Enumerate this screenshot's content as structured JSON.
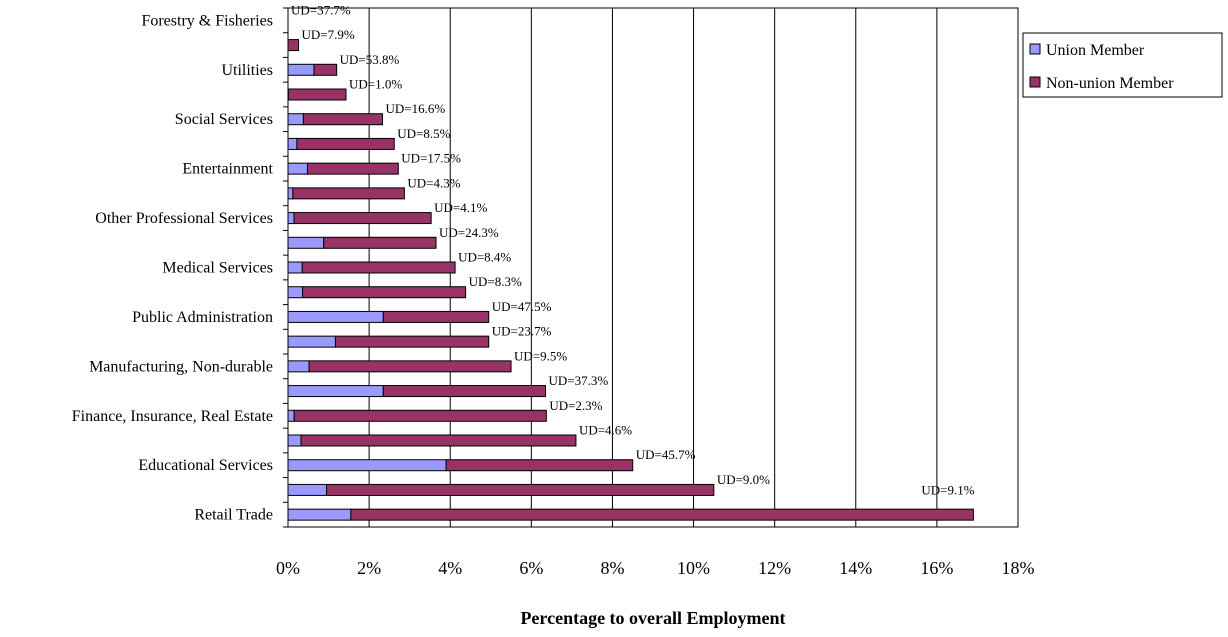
{
  "chart_data": {
    "type": "bar",
    "stacked": true,
    "orientation": "horizontal",
    "title": "",
    "xlabel": "Percentage to overall Employment",
    "ylabel": "",
    "xlim": [
      0,
      18
    ],
    "x_ticks": [
      "0%",
      "2%",
      "4%",
      "6%",
      "8%",
      "10%",
      "12%",
      "14%",
      "16%",
      "18%"
    ],
    "grid": "vertical",
    "legend_position": "right",
    "categories": [
      "Retail Trade",
      "",
      "Educational Services",
      "",
      "Finance, Insurance, Real Estate",
      "",
      "Manufacturing, Non-durable",
      "",
      "Public Administration",
      "",
      "Medical Services",
      "",
      "Other Professional Services",
      "",
      "Entertainment",
      "",
      "Social Services",
      "",
      "Utilities",
      "",
      "Forestry & Fisheries"
    ],
    "series": [
      {
        "name": "Union Member",
        "color": "#9999ff",
        "values": [
          1.55,
          0.95,
          3.9,
          0.32,
          0.15,
          2.35,
          0.52,
          1.17,
          2.35,
          0.36,
          0.35,
          0.88,
          0.15,
          0.12,
          0.48,
          0.22,
          0.38,
          0.01,
          0.64,
          0,
          0
        ]
      },
      {
        "name": "Non-union Member",
        "color": "#993366",
        "values": [
          15.35,
          9.55,
          4.6,
          6.78,
          6.22,
          4.0,
          4.98,
          3.78,
          2.6,
          4.02,
          3.77,
          2.77,
          3.38,
          2.75,
          2.24,
          2.4,
          1.95,
          1.42,
          0.56,
          0.26,
          0
        ]
      }
    ],
    "annotations": [
      "UD=9.1%",
      "UD=9.0%",
      "UD=45.7%",
      "UD=4.6%",
      "UD=2.3%",
      "UD=37.3%",
      "UD=9.5%",
      "UD=23.7%",
      "UD=47.5%",
      "UD=8.3%",
      "UD=8.4%",
      "UD=24.3%",
      "UD=4.1%",
      "UD=4.3%",
      "UD=17.5%",
      "UD=8.5%",
      "UD=16.6%",
      "UD=1.0%",
      "UD=53.8%",
      "UD=7.9%",
      "UD=37.7%"
    ]
  }
}
